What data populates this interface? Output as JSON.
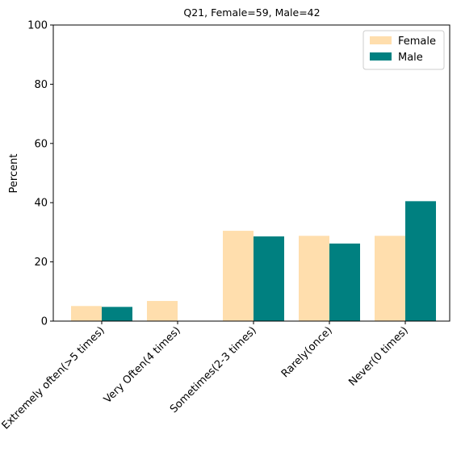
{
  "chart_data": {
    "type": "bar",
    "title": "Q21, Female=59, Male=42",
    "xlabel": "",
    "ylabel": "Percent",
    "ylim": [
      0,
      100
    ],
    "yticks": [
      0,
      20,
      40,
      60,
      80,
      100
    ],
    "categories": [
      "Extremely often(>5 times)",
      "Very Often(4 times)",
      "Sometimes(2-3 times)",
      "Rarely(once)",
      "Never(0 times)"
    ],
    "series": [
      {
        "name": "Female",
        "color": "#ffdead",
        "values": [
          5.1,
          6.8,
          30.5,
          28.8,
          28.8
        ]
      },
      {
        "name": "Male",
        "color": "#008080",
        "values": [
          4.8,
          0,
          28.6,
          26.2,
          40.5
        ]
      }
    ],
    "legend": "top-right",
    "grid": false
  }
}
